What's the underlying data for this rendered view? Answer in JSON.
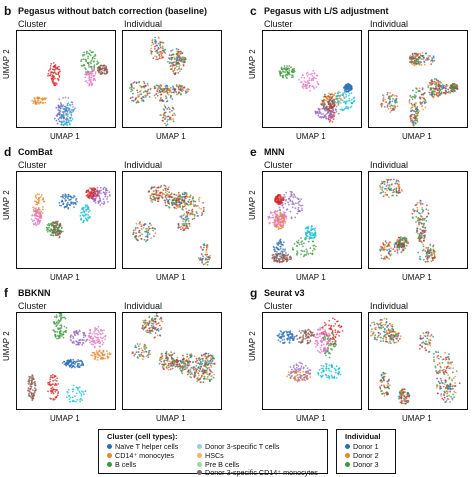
{
  "panels": [
    {
      "letter": "b",
      "title": "Pegasus without batch correction (baseline)",
      "sub_left": "Cluster",
      "sub_right": "Individual",
      "xlabel": "UMAP 1",
      "ylabel": "UMAP 2"
    },
    {
      "letter": "c",
      "title": "Pegasus with L/S adjustment",
      "sub_left": "Cluster",
      "sub_right": "Individual",
      "xlabel": "UMAP 1",
      "ylabel": "UMAP 2"
    },
    {
      "letter": "d",
      "title": "ComBat",
      "sub_left": "Cluster",
      "sub_right": "Individual",
      "xlabel": "UMAP 1",
      "ylabel": "UMAP 2"
    },
    {
      "letter": "e",
      "title": "MNN",
      "sub_left": "Cluster",
      "sub_right": "Individual",
      "xlabel": "UMAP 1",
      "ylabel": "UMAP 2"
    },
    {
      "letter": "f",
      "title": "BBKNN",
      "sub_left": "Cluster",
      "sub_right": "Individual",
      "xlabel": "UMAP 1",
      "ylabel": "UMAP 2"
    },
    {
      "letter": "g",
      "title": "Seurat v3",
      "sub_left": "Cluster",
      "sub_right": "Individual",
      "xlabel": "UMAP 1",
      "ylabel": "UMAP 2"
    }
  ],
  "legend_cluster": {
    "title": "Cluster (cell types):",
    "items": [
      {
        "label": "Naïve T helper cells",
        "color": "#2b6fb5"
      },
      {
        "label": "CD14⁺ monocytes",
        "color": "#e8862a"
      },
      {
        "label": "B cells",
        "color": "#3a9a3a"
      },
      {
        "label": "Donor 3-specific T cells",
        "color": "#9ecae1"
      },
      {
        "label": "HSCs",
        "color": "#f2b36b"
      },
      {
        "label": "Pre B cells",
        "color": "#a1d99b"
      },
      {
        "label": "Donor 3-specific CD14⁺ monocytes",
        "color": "#6e6e6e"
      }
    ]
  },
  "legend_individual": {
    "title": "Individual",
    "items": [
      {
        "label": "Donor 1",
        "color": "#2b6fb5"
      },
      {
        "label": "Donor 2",
        "color": "#e8862a"
      },
      {
        "label": "Donor 3",
        "color": "#3a9a3a"
      }
    ]
  },
  "colors": {
    "cluster_palette": [
      "#2b6fb5",
      "#e8862a",
      "#3a9a3a",
      "#d62728",
      "#9467bd",
      "#8c564b",
      "#e377c2",
      "#17becf",
      "#bcbd22",
      "#9ecae1",
      "#f2b36b",
      "#a1d99b"
    ],
    "individual_palette": [
      "#2b6fb5",
      "#e8862a",
      "#3a9a3a",
      "#d62728"
    ]
  }
}
